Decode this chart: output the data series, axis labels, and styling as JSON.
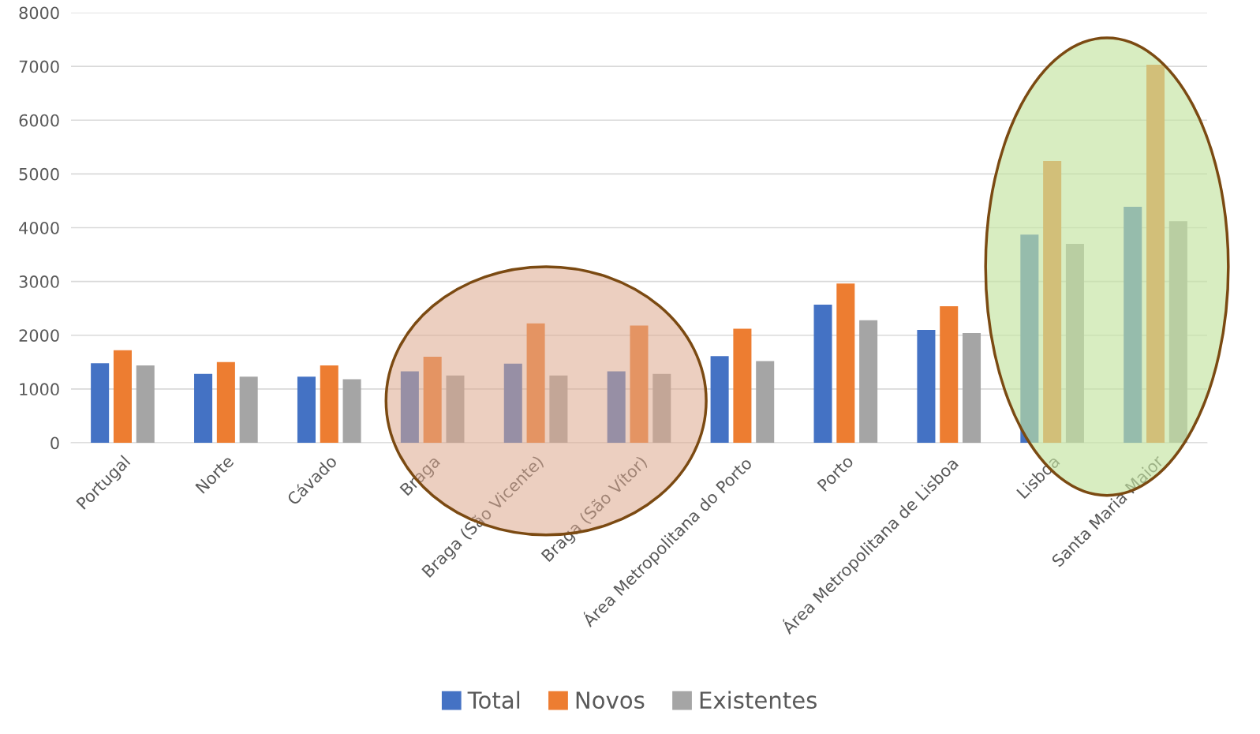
{
  "chart_data": {
    "type": "bar",
    "categories": [
      "Portugal",
      "Norte",
      "Cávado",
      "Braga",
      "Braga (São Vicente)",
      "Braga (São Vítor)",
      "Área Metropolitana do Porto",
      "Porto",
      "Área Metropolitana de Lisboa",
      "Lisboa",
      "Santa Maria Maior"
    ],
    "series": [
      {
        "name": "Total",
        "color": "#4472c4",
        "values": [
          1480,
          1280,
          1230,
          1330,
          1470,
          1330,
          1610,
          2570,
          2100,
          3870,
          4390
        ]
      },
      {
        "name": "Novos",
        "color": "#ed7d31",
        "values": [
          1720,
          1500,
          1440,
          1600,
          2220,
          2180,
          2120,
          2960,
          2540,
          5240,
          7030
        ]
      },
      {
        "name": "Existentes",
        "color": "#a5a5a5",
        "values": [
          1440,
          1230,
          1180,
          1250,
          1250,
          1280,
          1520,
          2280,
          2040,
          3700,
          4120
        ]
      }
    ],
    "ylim": [
      0,
      8000
    ],
    "yticks": [
      0,
      1000,
      2000,
      3000,
      4000,
      5000,
      6000,
      7000,
      8000
    ],
    "grid": "y",
    "legend": "bottom"
  }
}
